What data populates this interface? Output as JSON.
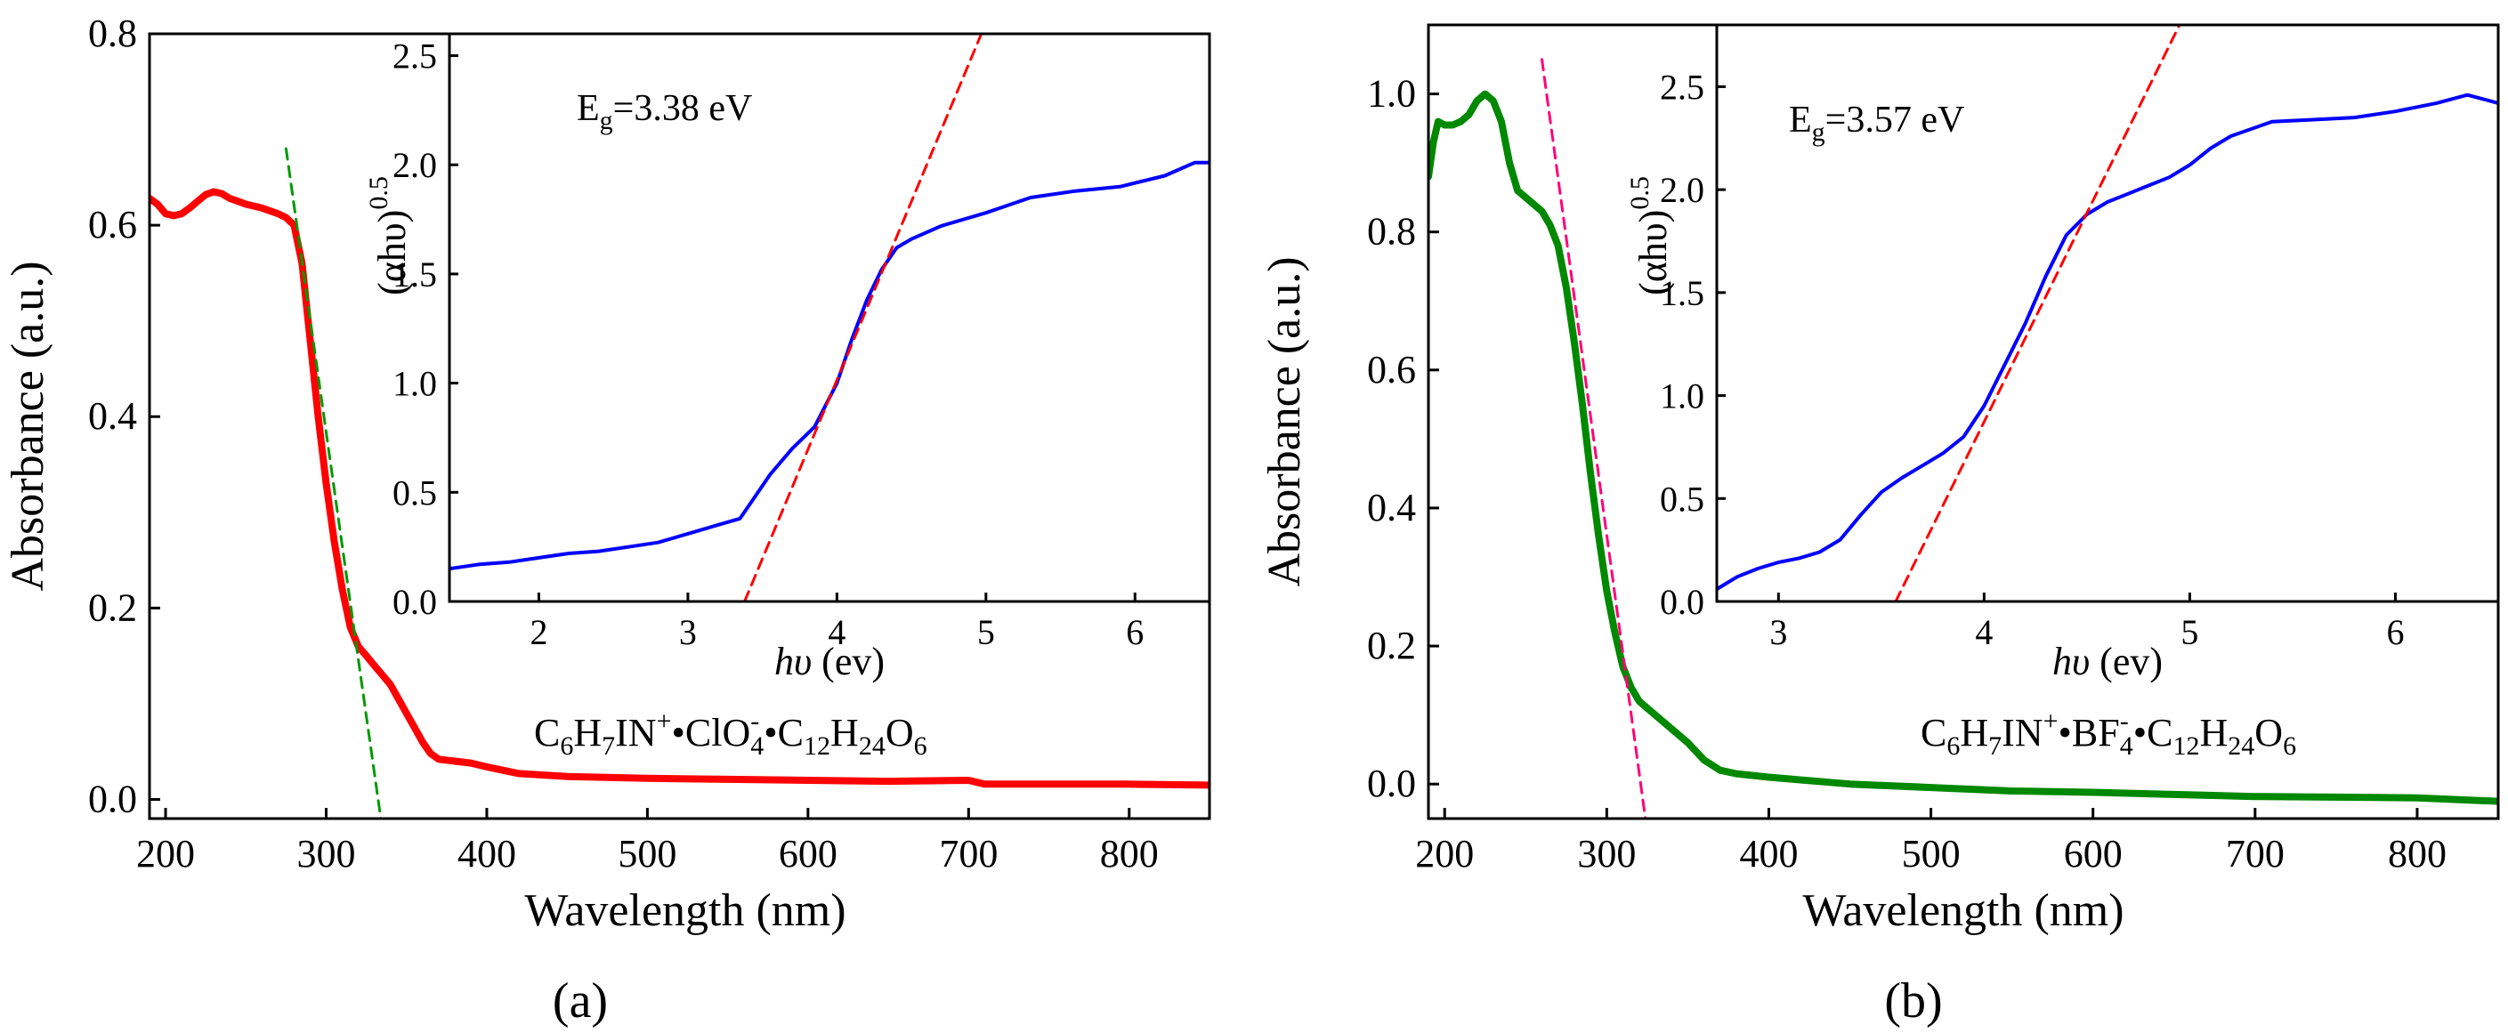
{
  "figure": {
    "panel_labels": [
      "(a)",
      "(b)"
    ]
  },
  "chart_data": [
    {
      "id": "a-main",
      "type": "line",
      "xlabel": "Wavelength (nm)",
      "ylabel": "Absorbance (a.u.)",
      "xlim": [
        190,
        850
      ],
      "ylim": [
        -0.02,
        0.8
      ],
      "xticks": [
        200,
        300,
        400,
        500,
        600,
        700,
        800
      ],
      "yticks": [
        0.0,
        0.2,
        0.4,
        0.6,
        0.8
      ],
      "xtick_labels": [
        "200",
        "300",
        "400",
        "500",
        "600",
        "700",
        "800"
      ],
      "ytick_labels": [
        "0.0",
        "0.2",
        "0.4",
        "0.6",
        "0.8"
      ],
      "annotation_parts": {
        "c": "C",
        "c_sub": "6",
        "h": "H",
        "h_sub": "7",
        "in": "IN",
        "in_sup": "+",
        "sep1": "•",
        "anion": "ClO",
        "anion_sub": "4",
        "anion_sup": "-",
        "sep2": "•",
        "c2": "C",
        "c2_sub": "12",
        "h2": "H",
        "h2_sub": "24",
        "o": "O",
        "o_sub": "6"
      },
      "series": [
        {
          "name": "absorbance",
          "color": "#ff0000",
          "x": [
            190,
            195,
            200,
            205,
            210,
            215,
            220,
            225,
            230,
            235,
            240,
            245,
            250,
            255,
            260,
            265,
            270,
            275,
            280,
            285,
            290,
            295,
            300,
            305,
            310,
            315,
            320,
            325,
            330,
            335,
            340,
            345,
            350,
            355,
            360,
            365,
            370,
            380,
            390,
            400,
            420,
            450,
            500,
            550,
            600,
            650,
            700,
            710,
            750,
            800,
            850
          ],
          "y": [
            0.628,
            0.622,
            0.612,
            0.61,
            0.612,
            0.618,
            0.625,
            0.632,
            0.635,
            0.633,
            0.628,
            0.625,
            0.622,
            0.62,
            0.618,
            0.615,
            0.612,
            0.608,
            0.6,
            0.56,
            0.48,
            0.4,
            0.33,
            0.27,
            0.22,
            0.18,
            0.16,
            0.15,
            0.14,
            0.13,
            0.12,
            0.105,
            0.09,
            0.075,
            0.06,
            0.048,
            0.042,
            0.04,
            0.038,
            0.034,
            0.027,
            0.024,
            0.022,
            0.021,
            0.02,
            0.019,
            0.02,
            0.016,
            0.016,
            0.016,
            0.015
          ]
        },
        {
          "name": "linear-fit",
          "color": "#009900",
          "dashed": true,
          "x": [
            275,
            334
          ],
          "y": [
            0.68,
            -0.02
          ]
        }
      ]
    },
    {
      "id": "a-inset",
      "type": "line",
      "xlabel_italic": "hυ",
      "xlabel_unit": "(ev)",
      "ylabel_base": "(αhυ)",
      "ylabel_exp": "0.5",
      "xlim": [
        1.4,
        6.5
      ],
      "ylim": [
        0.0,
        2.6
      ],
      "xticks": [
        2,
        3,
        4,
        5,
        6
      ],
      "yticks": [
        0.0,
        0.5,
        1.0,
        1.5,
        2.0,
        2.5
      ],
      "xtick_labels": [
        "2",
        "3",
        "4",
        "5",
        "6"
      ],
      "ytick_labels": [
        "0.0",
        "0.5",
        "1.0",
        "1.5",
        "2.0",
        "2.5"
      ],
      "gap_label": {
        "e": "E",
        "sub": "g",
        "value": "=3.38 eV"
      },
      "series": [
        {
          "name": "tauc",
          "color": "#0000ff",
          "x": [
            1.4,
            1.6,
            1.8,
            2.0,
            2.2,
            2.4,
            2.6,
            2.8,
            3.0,
            3.2,
            3.35,
            3.45,
            3.55,
            3.7,
            3.85,
            4.0,
            4.1,
            4.2,
            4.3,
            4.4,
            4.5,
            4.7,
            5.0,
            5.3,
            5.6,
            5.9,
            6.2,
            6.4,
            6.5
          ],
          "y": [
            0.15,
            0.17,
            0.18,
            0.2,
            0.22,
            0.23,
            0.25,
            0.27,
            0.31,
            0.35,
            0.38,
            0.48,
            0.58,
            0.7,
            0.8,
            1.0,
            1.2,
            1.38,
            1.52,
            1.62,
            1.66,
            1.72,
            1.78,
            1.85,
            1.88,
            1.9,
            1.95,
            2.01,
            2.01
          ]
        },
        {
          "name": "tangent",
          "color": "#ff0000",
          "dashed": true,
          "x": [
            3.38,
            5.0
          ],
          "y": [
            0.0,
            2.65
          ]
        }
      ]
    },
    {
      "id": "b-main",
      "type": "line",
      "xlabel": "Wavelength (nm)",
      "ylabel": "Absorbance (a.u.)",
      "xlim": [
        190,
        850
      ],
      "ylim": [
        -0.05,
        1.1
      ],
      "xticks": [
        200,
        300,
        400,
        500,
        600,
        700,
        800
      ],
      "yticks": [
        0.0,
        0.2,
        0.4,
        0.6,
        0.8,
        1.0
      ],
      "xtick_labels": [
        "200",
        "300",
        "400",
        "500",
        "600",
        "700",
        "800"
      ],
      "ytick_labels": [
        "0.0",
        "0.2",
        "0.4",
        "0.6",
        "0.8",
        "1.0"
      ],
      "annotation_parts": {
        "c": "C",
        "c_sub": "6",
        "h": "H",
        "h_sub": "7",
        "in": "IN",
        "in_sup": "+",
        "sep1": "•",
        "anion": "BF",
        "anion_sub": "4",
        "anion_sup": "-",
        "sep2": "•",
        "c2": "C",
        "c2_sub": "12",
        "h2": "H",
        "h2_sub": "24",
        "o": "O",
        "o_sub": "6"
      },
      "series": [
        {
          "name": "absorbance",
          "color": "#008800",
          "x": [
            190,
            193,
            196,
            200,
            205,
            210,
            215,
            220,
            225,
            230,
            235,
            240,
            245,
            250,
            255,
            260,
            265,
            270,
            275,
            280,
            285,
            290,
            295,
            300,
            305,
            310,
            315,
            320,
            330,
            340,
            350,
            360,
            370,
            380,
            400,
            450,
            500,
            550,
            600,
            700,
            800,
            850
          ],
          "y": [
            0.88,
            0.93,
            0.96,
            0.955,
            0.955,
            0.96,
            0.97,
            0.99,
            1.0,
            0.99,
            0.96,
            0.9,
            0.86,
            0.85,
            0.84,
            0.83,
            0.81,
            0.78,
            0.72,
            0.64,
            0.55,
            0.45,
            0.36,
            0.28,
            0.22,
            0.17,
            0.14,
            0.12,
            0.1,
            0.08,
            0.06,
            0.035,
            0.02,
            0.015,
            0.01,
            0.0,
            -0.005,
            -0.01,
            -0.012,
            -0.018,
            -0.02,
            -0.025
          ]
        },
        {
          "name": "linear-fit",
          "color": "#ff0077",
          "dashed": true,
          "x": [
            260,
            325
          ],
          "y": [
            1.05,
            -0.07
          ]
        }
      ]
    },
    {
      "id": "b-inset",
      "type": "line",
      "xlabel_italic": "hυ",
      "xlabel_unit": "(ev)",
      "ylabel_base": "(αhυ)",
      "ylabel_exp": "0.5",
      "xlim": [
        2.7,
        6.5
      ],
      "ylim": [
        0.0,
        2.8
      ],
      "xticks": [
        3,
        4,
        5,
        6
      ],
      "yticks": [
        0.0,
        0.5,
        1.0,
        1.5,
        2.0,
        2.5
      ],
      "xtick_labels": [
        "3",
        "4",
        "5",
        "6"
      ],
      "ytick_labels": [
        "0.0",
        "0.5",
        "1.0",
        "1.5",
        "2.0",
        "2.5"
      ],
      "gap_label": {
        "e": "E",
        "sub": "g",
        "value": "=3.57 eV"
      },
      "series": [
        {
          "name": "tauc",
          "color": "#0000ff",
          "x": [
            2.7,
            2.8,
            2.9,
            3.0,
            3.1,
            3.2,
            3.3,
            3.4,
            3.5,
            3.6,
            3.7,
            3.8,
            3.9,
            4.0,
            4.1,
            4.2,
            4.3,
            4.4,
            4.5,
            4.6,
            4.7,
            4.8,
            4.9,
            5.0,
            5.1,
            5.2,
            5.4,
            5.6,
            5.8,
            6.0,
            6.2,
            6.35,
            6.5
          ],
          "y": [
            0.06,
            0.12,
            0.16,
            0.19,
            0.21,
            0.24,
            0.3,
            0.42,
            0.53,
            0.6,
            0.66,
            0.72,
            0.8,
            0.95,
            1.15,
            1.35,
            1.58,
            1.78,
            1.88,
            1.94,
            1.98,
            2.02,
            2.06,
            2.12,
            2.2,
            2.26,
            2.33,
            2.34,
            2.35,
            2.38,
            2.42,
            2.46,
            2.42
          ]
        },
        {
          "name": "tangent",
          "color": "#ff0000",
          "dashed": true,
          "x": [
            3.57,
            4.95
          ],
          "y": [
            0.0,
            2.8
          ]
        }
      ]
    }
  ]
}
